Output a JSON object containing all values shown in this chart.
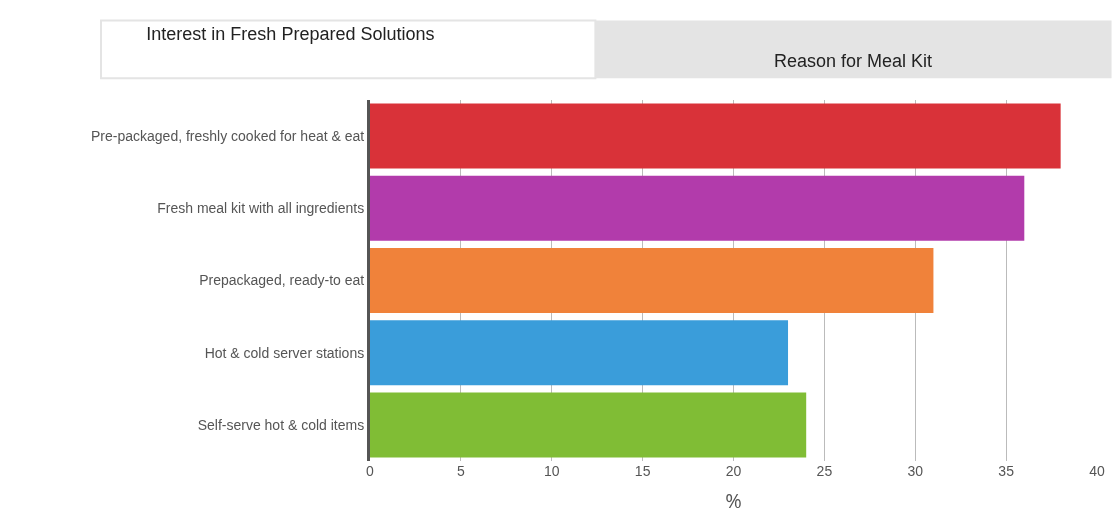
{
  "chart_data": {
    "type": "bar",
    "orientation": "horizontal",
    "title": "Interest in Fresh Prepared Solutions",
    "annotations": [
      "Reason for Meal Kit"
    ],
    "categories": [
      "Pre-packaged, freshly cooked for heat & eat",
      "Fresh meal kit with all ingredients",
      "Prepackaged, ready-to eat",
      "Hot & cold server stations",
      "Self-serve hot & cold items"
    ],
    "values": [
      38,
      36,
      31,
      23,
      24
    ],
    "colors": [
      "#d93239",
      "#b23bab",
      "#f0823a",
      "#3a9dda",
      "#80bd35"
    ],
    "xlabel": "%",
    "xlim": [
      0,
      40
    ],
    "xticks": [
      0,
      5,
      10,
      15,
      20,
      25,
      30,
      35,
      40
    ],
    "grid": "x",
    "legend": false
  }
}
